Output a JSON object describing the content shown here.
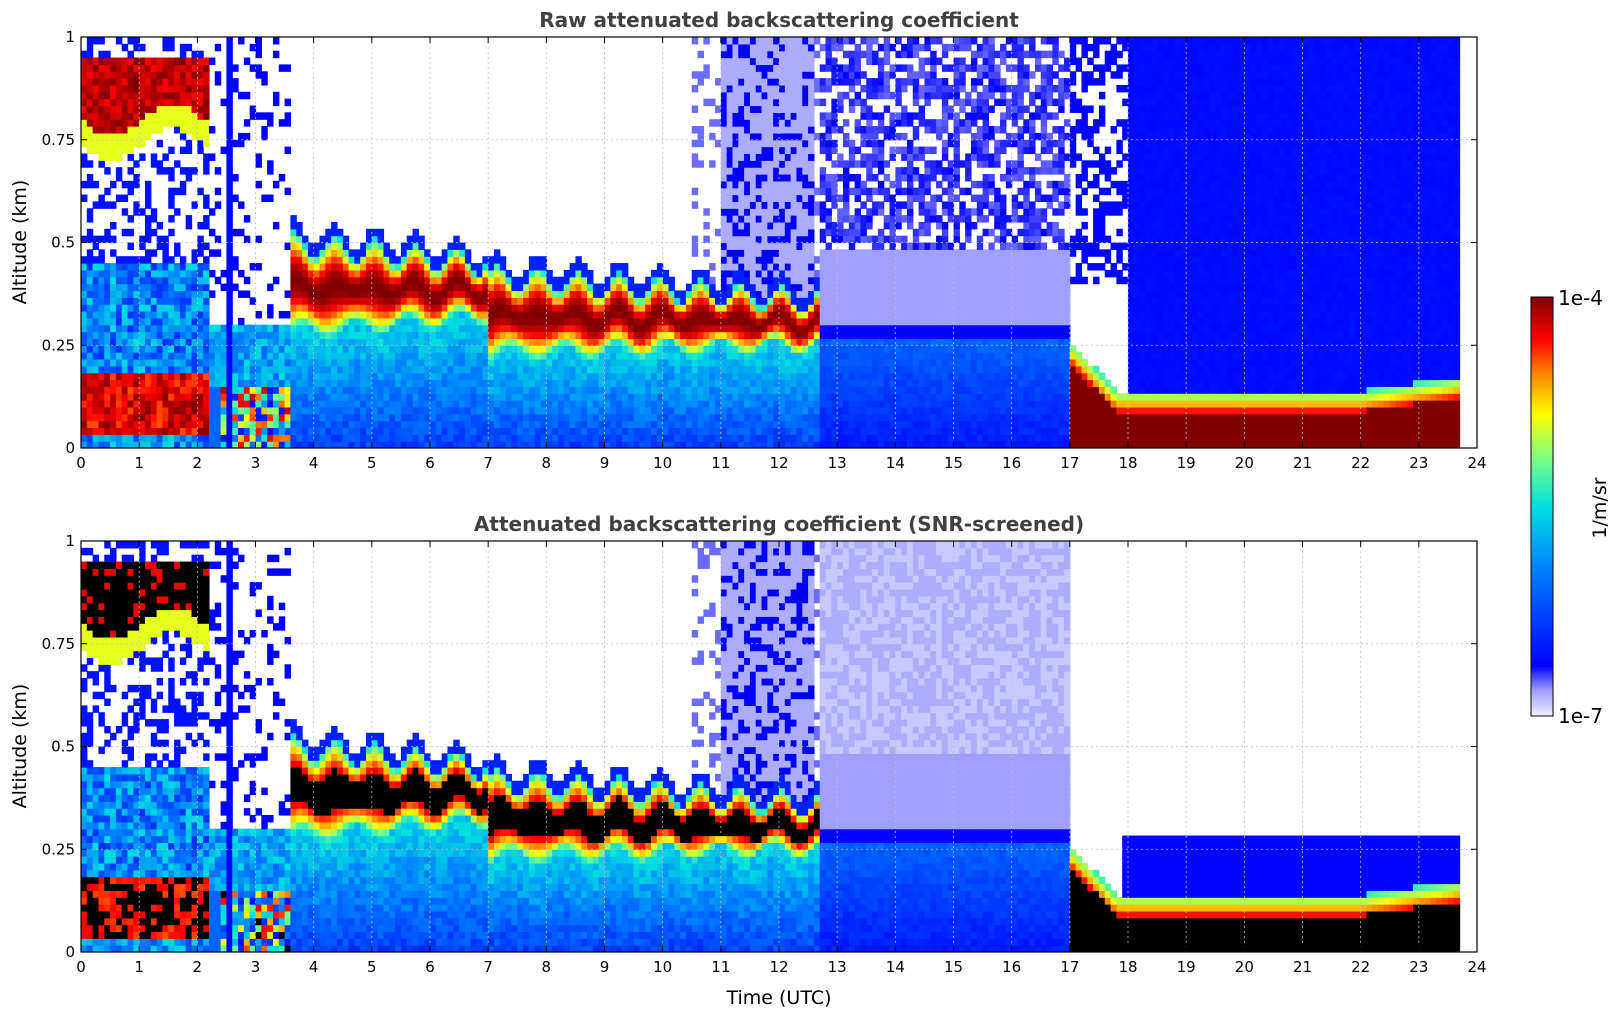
{
  "chart_data": [
    {
      "type": "heatmap",
      "title": "Raw attenuated backscattering coefficient",
      "xlabel": "",
      "ylabel": "Altitude (km)",
      "xlim": [
        0,
        24
      ],
      "ylim": [
        0,
        1
      ],
      "x_ticks": [
        "0",
        "1",
        "2",
        "3",
        "4",
        "5",
        "6",
        "7",
        "8",
        "9",
        "10",
        "11",
        "12",
        "13",
        "14",
        "15",
        "16",
        "17",
        "18",
        "19",
        "20",
        "21",
        "22",
        "23",
        "24"
      ],
      "y_ticks": [
        "0",
        "0.25",
        "0.5",
        "0.75",
        "1"
      ],
      "grid": true,
      "screened": false,
      "layers": [
        {
          "t_start": 0,
          "t_end": 2.2,
          "top_km": [
            0.95,
            0.94,
            0.93,
            0.9,
            0.88
          ],
          "base_km": [
            0.82,
            0.86,
            0.84,
            0.8,
            0.76
          ],
          "note_level": "high"
        },
        {
          "t_start": 3.6,
          "t_end": 7.0,
          "top_km": [
            0.48,
            0.45,
            0.42,
            0.42,
            0.45
          ],
          "base_km": [
            0.28,
            0.3,
            0.3,
            0.31,
            0.32
          ]
        },
        {
          "t_start": 7.0,
          "t_end": 12.6,
          "top_km": [
            0.42,
            0.41,
            0.4,
            0.38,
            0.36
          ],
          "base_km": [
            0.22,
            0.24,
            0.25,
            0.25,
            0.25
          ]
        },
        {
          "t_start": 17.0,
          "t_end": 23.7,
          "top_km": [
            0.22,
            0.15,
            0.12,
            0.12,
            0.15
          ],
          "base_km": [
            0.0,
            0.0,
            0.0,
            0.0,
            0.0
          ]
        }
      ]
    },
    {
      "type": "heatmap",
      "title": "Attenuated backscattering coefficient (SNR-screened)",
      "xlabel": "Time (UTC)",
      "ylabel": "Altitude (km)",
      "xlim": [
        0,
        24
      ],
      "ylim": [
        0,
        1
      ],
      "x_ticks": [
        "0",
        "1",
        "2",
        "3",
        "4",
        "5",
        "6",
        "7",
        "8",
        "9",
        "10",
        "11",
        "12",
        "13",
        "14",
        "15",
        "16",
        "17",
        "18",
        "19",
        "20",
        "21",
        "22",
        "23",
        "24"
      ],
      "y_ticks": [
        "0",
        "0.25",
        "0.5",
        "0.75",
        "1"
      ],
      "grid": true,
      "screened": true
    }
  ],
  "colorbar": {
    "max_label": "1e-4",
    "min_label": "1e-7",
    "unit_label": "1/m/sr",
    "colormap": "jet",
    "scale": "log",
    "range": [
      1e-07,
      0.0001
    ]
  },
  "colors": {
    "title": "#404040",
    "grid": "#c0c0c0",
    "saturated_screened": "#000000",
    "saturated_raw": "#800000"
  }
}
